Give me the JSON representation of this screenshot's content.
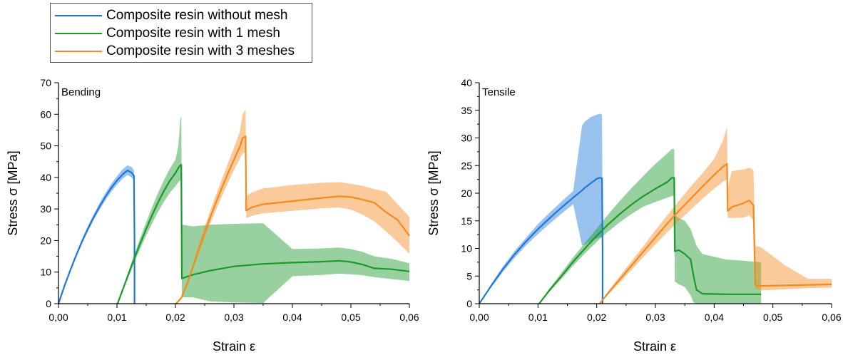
{
  "legend": {
    "items": [
      {
        "label": "Composite resin without mesh",
        "color": "#1e78dc"
      },
      {
        "label": "Composite resin with 1 mesh",
        "color": "#1a9a2a"
      },
      {
        "label": "Composite resin with 3 meshes",
        "color": "#f58a1f"
      }
    ]
  },
  "chart_data": [
    {
      "type": "line",
      "title": "Bending",
      "xlabel": "Strain ε",
      "ylabel": "Stress σ [MPa]",
      "xlim": [
        0,
        0.06
      ],
      "ylim": [
        0,
        70
      ],
      "xticks": [
        0,
        0.01,
        0.02,
        0.03,
        0.04,
        0.05,
        0.06
      ],
      "xtick_labels": [
        "0,00",
        "0,01",
        "0,02",
        "0,03",
        "0,04",
        "0,05",
        "0,06"
      ],
      "yticks": [
        0,
        10,
        20,
        30,
        40,
        50,
        60,
        70
      ],
      "ytick_labels": [
        "0",
        "10",
        "20",
        "30",
        "40",
        "50",
        "60",
        "70"
      ],
      "series": [
        {
          "name": "Composite resin without mesh",
          "color": "#1e78dc",
          "x": [
            0,
            0.001,
            0.002,
            0.003,
            0.004,
            0.005,
            0.006,
            0.007,
            0.008,
            0.009,
            0.01,
            0.011,
            0.0118,
            0.0125,
            0.0129,
            0.013,
            0.013
          ],
          "y": [
            0,
            5.5,
            10.5,
            15.2,
            19.6,
            23.6,
            27.3,
            30.7,
            33.8,
            36.6,
            39.0,
            41.0,
            42.2,
            41.5,
            40.5,
            20,
            0
          ],
          "lower": [
            0,
            5.2,
            10.0,
            14.6,
            18.9,
            22.8,
            26.4,
            29.7,
            32.7,
            35.4,
            37.7,
            39.6,
            40.8,
            40.0,
            39.0,
            20,
            0
          ],
          "upper": [
            0,
            5.9,
            11.1,
            15.9,
            20.4,
            24.5,
            28.3,
            31.8,
            35.0,
            37.9,
            40.4,
            42.6,
            43.8,
            43.3,
            42.3,
            20,
            0
          ]
        },
        {
          "name": "Composite resin with 1 mesh",
          "color": "#1a9a2a",
          "x": [
            0.0101,
            0.0106,
            0.011,
            0.012,
            0.013,
            0.014,
            0.015,
            0.016,
            0.017,
            0.018,
            0.019,
            0.02,
            0.0205,
            0.0208,
            0.021,
            0.0211,
            0.023,
            0.026,
            0.03,
            0.035,
            0.04,
            0.045,
            0.048,
            0.05,
            0.052,
            0.054,
            0.057,
            0.06
          ],
          "y": [
            0,
            2.5,
            4.5,
            9.5,
            14.5,
            19.2,
            23.7,
            28.0,
            32.0,
            35.6,
            38.8,
            41.4,
            43.0,
            43.8,
            44.0,
            8.0,
            9.2,
            10.5,
            11.8,
            12.6,
            13.0,
            13.3,
            13.6,
            13.2,
            12.4,
            11.2,
            10.9,
            10.2
          ],
          "lower": [
            0,
            2.2,
            4.0,
            8.6,
            13.2,
            17.5,
            21.6,
            25.4,
            29.0,
            32.2,
            35.0,
            37.2,
            38.5,
            39.0,
            39.0,
            2.0,
            2.0,
            0.7,
            0.4,
            0.2,
            8.7,
            9.1,
            9.5,
            9.3,
            9.0,
            8.4,
            7.8,
            7.2
          ],
          "upper": [
            0,
            2.8,
            5.0,
            10.4,
            15.8,
            20.9,
            25.8,
            30.6,
            35.0,
            39.0,
            42.6,
            45.6,
            50.0,
            58.0,
            59.5,
            25.0,
            24.5,
            25.0,
            25.3,
            25.5,
            17.3,
            17.5,
            17.8,
            17.3,
            16.4,
            15.0,
            14.2,
            12.8
          ]
        },
        {
          "name": "Composite resin with 3 meshes",
          "color": "#f58a1f",
          "x": [
            0.0201,
            0.021,
            0.022,
            0.023,
            0.024,
            0.025,
            0.026,
            0.027,
            0.028,
            0.029,
            0.03,
            0.031,
            0.0315,
            0.032,
            0.0321,
            0.033,
            0.035,
            0.04,
            0.045,
            0.048,
            0.05,
            0.052,
            0.054,
            0.056,
            0.058,
            0.06
          ],
          "y": [
            0,
            1.8,
            6.3,
            11.8,
            17.3,
            22.6,
            27.6,
            32.4,
            37.0,
            41.4,
            45.6,
            49.7,
            52.5,
            53.0,
            29.5,
            30.5,
            31.5,
            32.5,
            33.5,
            34.0,
            33.8,
            33.0,
            32.0,
            29.0,
            26.5,
            21.5
          ],
          "lower": [
            0,
            1.4,
            5.6,
            10.8,
            15.9,
            20.9,
            25.6,
            30.0,
            34.3,
            38.4,
            42.3,
            45.9,
            47.6,
            47.9,
            27.0,
            27.8,
            28.6,
            29.4,
            30.2,
            30.5,
            29.8,
            28.2,
            26.1,
            22.9,
            19.5,
            15.8
          ],
          "upper": [
            0,
            2.3,
            7.1,
            12.9,
            18.8,
            24.4,
            29.7,
            34.8,
            39.8,
            44.6,
            49.4,
            54.4,
            60.0,
            61.5,
            34.0,
            35.2,
            36.5,
            37.6,
            38.3,
            38.5,
            38.0,
            37.3,
            36.3,
            35.5,
            31.5,
            27.5
          ]
        }
      ]
    },
    {
      "type": "line",
      "title": "Tensile",
      "xlabel": "Strain ε",
      "ylabel": "Stress σ [MPa]",
      "xlim": [
        0,
        0.06
      ],
      "ylim": [
        0,
        40
      ],
      "xticks": [
        0,
        0.01,
        0.02,
        0.03,
        0.04,
        0.05,
        0.06
      ],
      "xtick_labels": [
        "0,00",
        "0,01",
        "0,02",
        "0,03",
        "0,04",
        "0,05",
        "0,06"
      ],
      "yticks": [
        0,
        5,
        10,
        15,
        20,
        25,
        30,
        35,
        40
      ],
      "ytick_labels": [
        "0",
        "5",
        "10",
        "15",
        "20",
        "25",
        "30",
        "35",
        "40"
      ],
      "series": [
        {
          "name": "Composite resin without mesh",
          "color": "#1e78dc",
          "x": [
            0,
            0.002,
            0.004,
            0.006,
            0.008,
            0.01,
            0.012,
            0.014,
            0.016,
            0.0175,
            0.018,
            0.019,
            0.02,
            0.0205,
            0.0209,
            0.021,
            0.021
          ],
          "y": [
            0,
            3.2,
            6.2,
            8.9,
            11.3,
            13.5,
            15.5,
            17.4,
            19.2,
            20.5,
            21.0,
            21.8,
            22.6,
            22.8,
            22.7,
            10.0,
            0
          ],
          "lower": [
            0,
            2.9,
            5.7,
            8.3,
            10.6,
            12.6,
            14.5,
            16.3,
            18.0,
            10.5,
            10.7,
            11.3,
            11.8,
            12.0,
            12.0,
            5.0,
            0
          ],
          "upper": [
            0,
            3.5,
            6.7,
            9.5,
            12.0,
            14.4,
            16.5,
            18.5,
            20.4,
            32.2,
            33.0,
            33.8,
            34.2,
            34.4,
            34.2,
            15.0,
            0
          ]
        },
        {
          "name": "Composite resin with 1 mesh",
          "color": "#1a9a2a",
          "x": [
            0.0102,
            0.012,
            0.014,
            0.016,
            0.018,
            0.02,
            0.022,
            0.024,
            0.026,
            0.028,
            0.03,
            0.032,
            0.0328,
            0.0332,
            0.0333,
            0.034,
            0.035,
            0.036,
            0.0365,
            0.037,
            0.038,
            0.042,
            0.045,
            0.048
          ],
          "y": [
            0,
            2.5,
            5.0,
            7.6,
            10.0,
            12.3,
            14.4,
            16.3,
            18.0,
            19.5,
            20.8,
            22.0,
            22.8,
            22.8,
            9.5,
            9.7,
            9.0,
            8.0,
            5.0,
            2.5,
            1.8,
            1.7,
            1.7,
            1.7
          ],
          "lower": [
            0,
            2.2,
            4.5,
            6.9,
            9.1,
            11.2,
            13.1,
            14.8,
            16.3,
            17.6,
            18.4,
            19.2,
            19.5,
            19.5,
            4.0,
            3.5,
            3.0,
            1.5,
            0.2,
            0,
            0,
            0,
            0,
            0
          ],
          "upper": [
            0,
            2.8,
            5.6,
            8.4,
            11.0,
            13.6,
            16.2,
            18.7,
            21.0,
            23.2,
            25.3,
            27.2,
            28.0,
            28.0,
            16.0,
            15.5,
            15.0,
            13.5,
            12.0,
            10.5,
            9.0,
            8.0,
            7.8,
            7.5
          ]
        },
        {
          "name": "Composite resin with 3 meshes",
          "color": "#f58a1f",
          "x": [
            0.0205,
            0.022,
            0.024,
            0.026,
            0.028,
            0.03,
            0.032,
            0.034,
            0.036,
            0.038,
            0.04,
            0.0415,
            0.0422,
            0.0423,
            0.043,
            0.045,
            0.046,
            0.0467,
            0.047,
            0.048,
            0.052,
            0.056,
            0.06
          ],
          "y": [
            0,
            2.0,
            4.5,
            7.0,
            9.5,
            12.0,
            14.5,
            16.8,
            19.0,
            21.2,
            23.3,
            24.8,
            25.3,
            16.8,
            17.5,
            18.2,
            18.7,
            17.8,
            3.3,
            3.2,
            3.3,
            3.4,
            3.5
          ],
          "lower": [
            0,
            1.7,
            3.9,
            6.2,
            8.5,
            10.7,
            12.9,
            15.0,
            17.0,
            19.0,
            20.8,
            22.1,
            22.5,
            15.5,
            15.5,
            15.6,
            16.0,
            15.0,
            2.7,
            2.4,
            2.6,
            2.8,
            2.9
          ],
          "upper": [
            0,
            2.3,
            5.1,
            7.8,
            10.5,
            13.3,
            16.0,
            18.6,
            21.2,
            23.6,
            26.2,
            29.5,
            32.0,
            21.0,
            24.0,
            24.3,
            24.6,
            24.2,
            10.5,
            10.2,
            7.0,
            4.5,
            4.5
          ]
        }
      ]
    }
  ]
}
